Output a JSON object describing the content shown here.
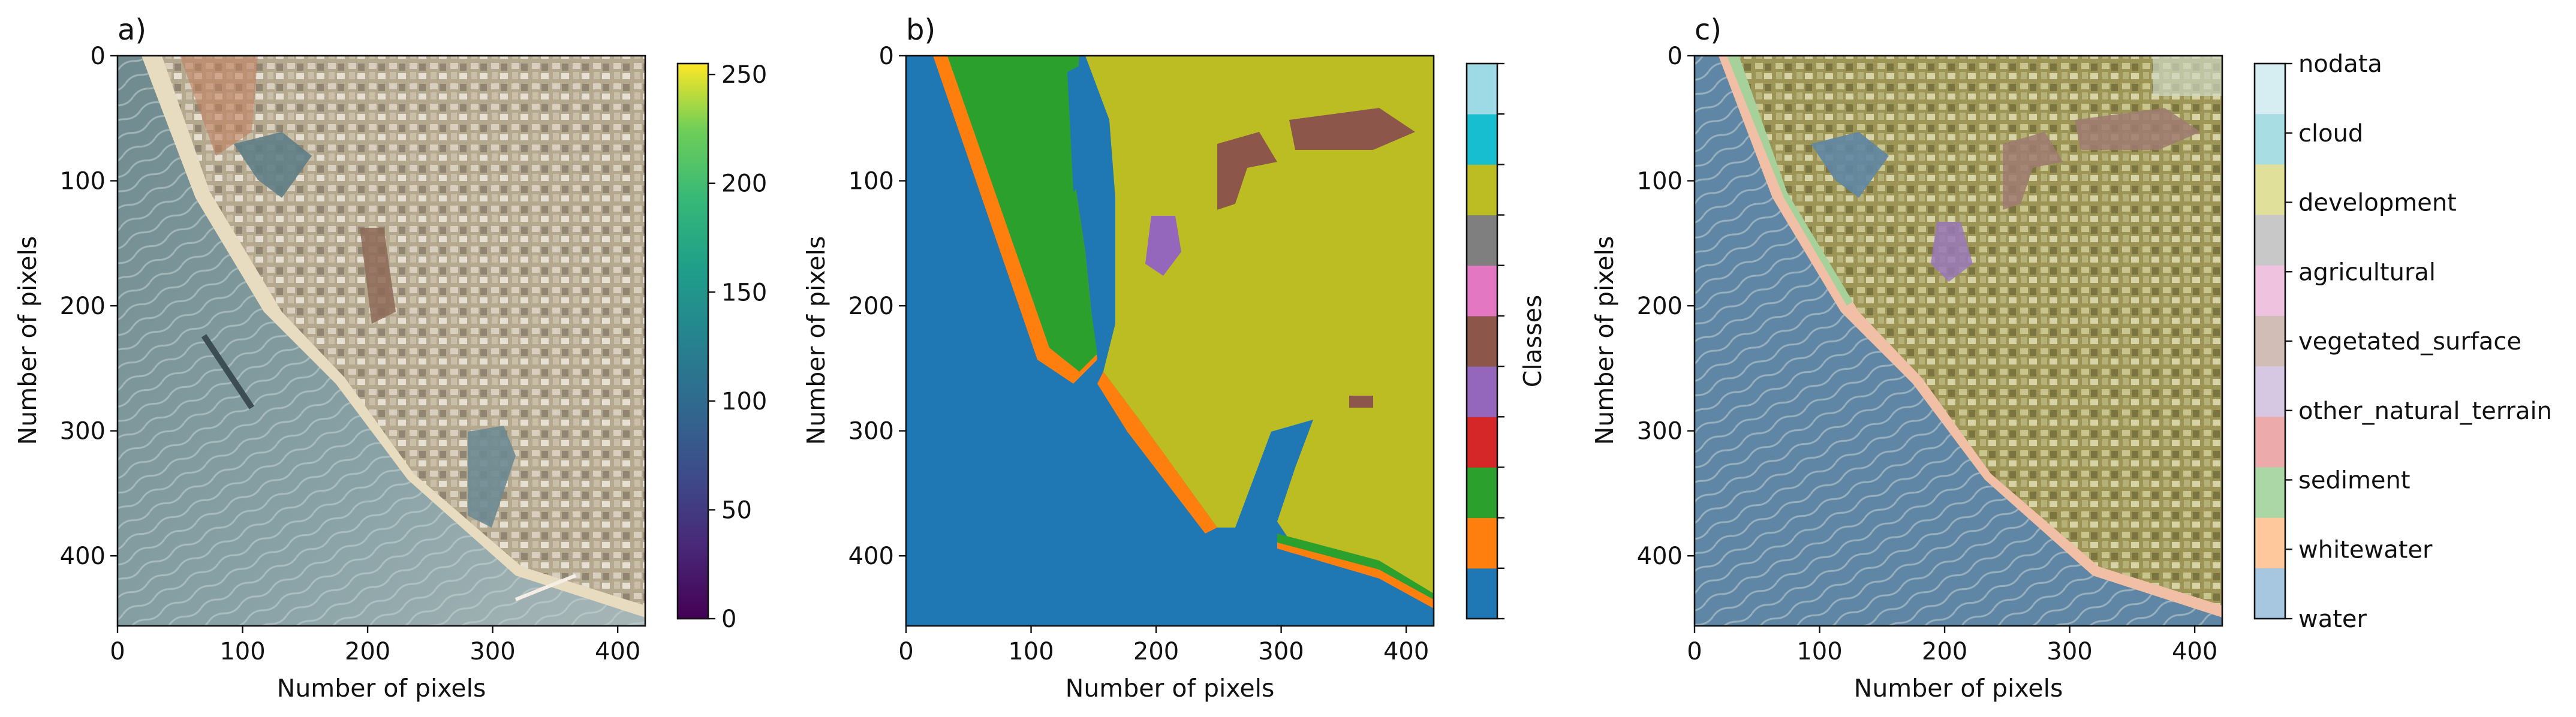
{
  "colors": {
    "water": "#1f77b4",
    "whitewater": "#ff7f0e",
    "sediment": "#2ca02c",
    "other_natural_terrain": "#d62728",
    "vegetated_surface": "#9467bd",
    "agricultural": "#8c564b",
    "development": "#e377c2",
    "class8": "#7f7f7f",
    "cloud": "#bcbd22",
    "nodata": "#17becf",
    "class11": "#9edae5"
  },
  "chart_data": [
    {
      "panel": "a)",
      "type": "heatmap",
      "title": "a)",
      "xlabel": "Number of pixels",
      "ylabel": "Number of pixels",
      "xlim": [
        0,
        422
      ],
      "ylim": [
        456,
        0
      ],
      "xticks": [
        "0",
        "100",
        "200",
        "300",
        "400"
      ],
      "yticks": [
        "0",
        "100",
        "200",
        "300",
        "400"
      ],
      "colorbar": {
        "colormap": "viridis",
        "range": [
          0,
          255
        ],
        "ticks": [
          "0",
          "50",
          "100",
          "150",
          "200",
          "250"
        ],
        "label": ""
      }
    },
    {
      "panel": "b)",
      "type": "heatmap",
      "title": "b)",
      "xlabel": "Number of pixels",
      "ylabel": "Number of pixels",
      "xlim": [
        0,
        422
      ],
      "ylim": [
        456,
        0
      ],
      "xticks": [
        "0",
        "100",
        "200",
        "300",
        "400"
      ],
      "yticks": [
        "0",
        "100",
        "200",
        "300",
        "400"
      ],
      "colorbar": {
        "label": "Classes",
        "n_classes": 11,
        "colors": [
          "#1f77b4",
          "#ff7f0e",
          "#2ca02c",
          "#d62728",
          "#9467bd",
          "#8c564b",
          "#e377c2",
          "#7f7f7f",
          "#bcbd22",
          "#17becf",
          "#9edae5"
        ]
      }
    },
    {
      "panel": "c)",
      "type": "heatmap",
      "title": "c)",
      "xlabel": "Number of pixels",
      "ylabel": "Number of pixels",
      "xlim": [
        0,
        422
      ],
      "ylim": [
        456,
        0
      ],
      "xticks": [
        "0",
        "100",
        "200",
        "300",
        "400"
      ],
      "yticks": [
        "0",
        "100",
        "200",
        "300",
        "400"
      ],
      "colorbar": {
        "labels": [
          "nodata",
          "cloud",
          "development",
          "agricultural",
          "vegetated_surface",
          "other_natural_terrain",
          "sediment",
          "whitewater",
          "water"
        ],
        "colors": [
          "#d6eef2",
          "#a9dde4",
          "#e0e09a",
          "#c8c8c8",
          "#efc3e0",
          "#d2bcb6",
          "#d6c7e2",
          "#ecaaaa",
          "#aad7a5",
          "#ffc79b",
          "#a7c6e0"
        ]
      }
    }
  ]
}
